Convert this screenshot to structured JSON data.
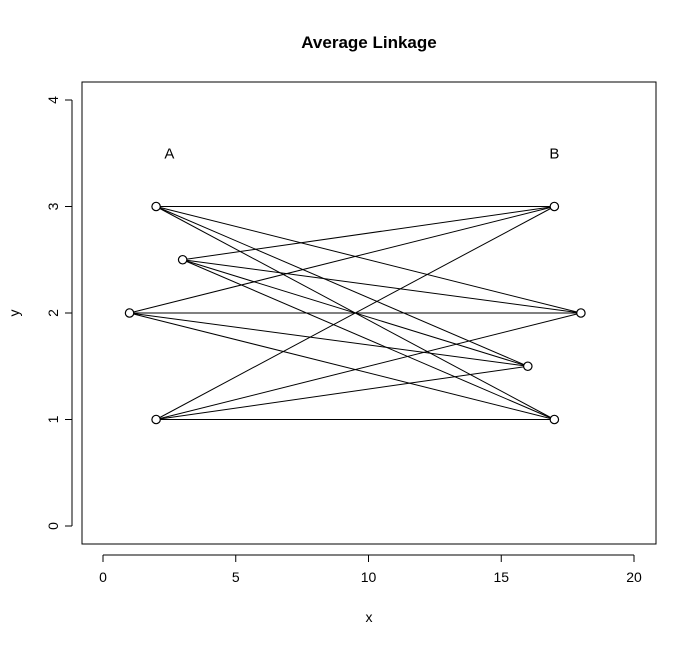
{
  "chart_data": {
    "type": "scatter",
    "title": "Average Linkage",
    "xlabel": "x",
    "ylabel": "y",
    "xlim": [
      0,
      20
    ],
    "ylim": [
      0,
      4
    ],
    "x_ticks": [
      "0",
      "5",
      "10",
      "15",
      "20"
    ],
    "y_ticks": [
      "0",
      "1",
      "2",
      "3",
      "4"
    ],
    "grid": false,
    "groups": [
      {
        "label": "A",
        "label_at": {
          "x": 2.5,
          "y": 3.5
        },
        "points": [
          {
            "x": 2,
            "y": 3
          },
          {
            "x": 3,
            "y": 2.5
          },
          {
            "x": 1,
            "y": 2
          },
          {
            "x": 2,
            "y": 1
          }
        ]
      },
      {
        "label": "B",
        "label_at": {
          "x": 17,
          "y": 3.5
        },
        "points": [
          {
            "x": 17,
            "y": 3
          },
          {
            "x": 18,
            "y": 2
          },
          {
            "x": 16,
            "y": 1.5
          },
          {
            "x": 17,
            "y": 1
          }
        ]
      }
    ],
    "connections": "all pairs between group A and group B"
  }
}
